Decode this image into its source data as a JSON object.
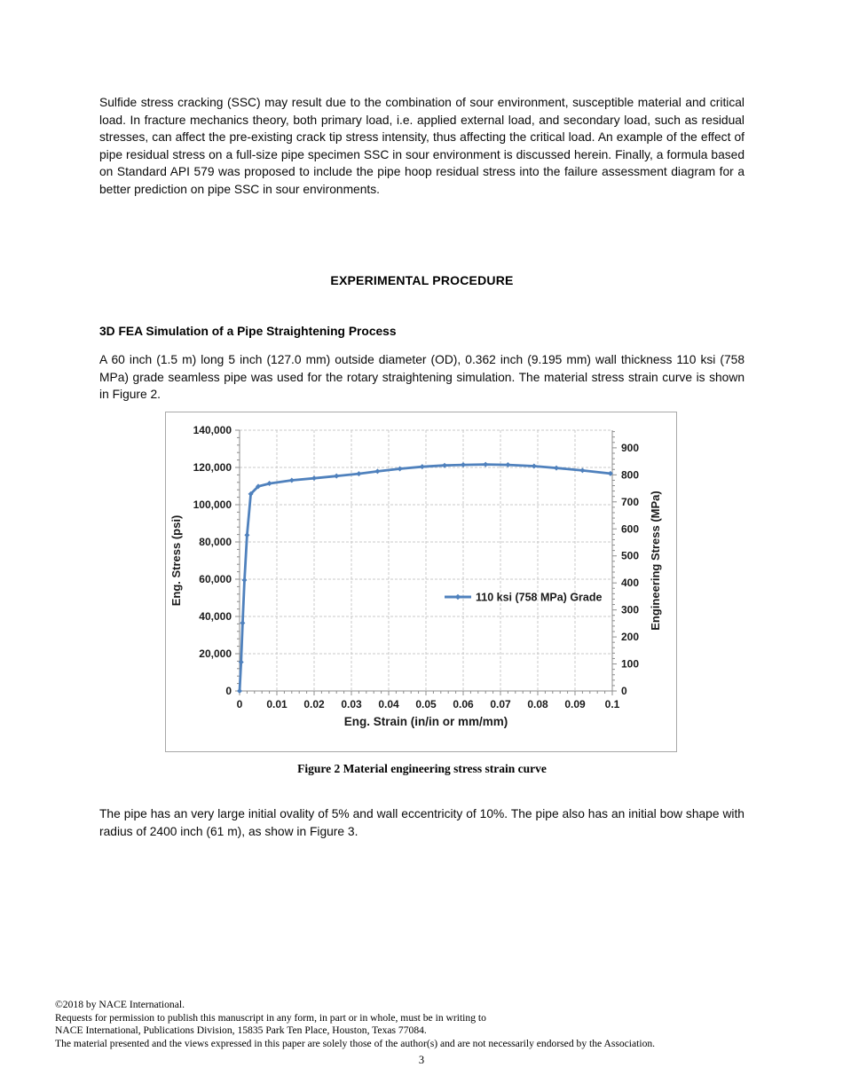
{
  "document": {
    "paragraph1": "Sulfide stress cracking (SSC) may result due to the combination of sour environment, susceptible material and critical load.  In fracture mechanics theory, both primary load, i.e. applied external load, and secondary load, such as residual stresses, can affect the pre-existing crack tip stress intensity, thus affecting the critical load.  An example of the effect of pipe residual stress on a full-size pipe specimen SSC in sour environment is discussed herein. Finally, a formula based on Standard API 579 was proposed to include the pipe hoop residual stress into the failure assessment diagram for a better prediction on pipe SSC in sour environments.",
    "section_heading": "EXPERIMENTAL PROCEDURE",
    "subsection_heading": "3D FEA Simulation of a Pipe Straightening Process",
    "paragraph2": "A 60 inch (1.5 m) long 5 inch (127.0 mm) outside diameter (OD), 0.362 inch (9.195 mm) wall thickness 110 ksi (758 MPa) grade seamless pipe was used for the rotary straightening simulation. The material stress strain curve is shown in Figure 2.",
    "figure_caption": "Figure 2 Material engineering stress strain curve",
    "paragraph3": "The pipe has an very large initial ovality of 5% and wall eccentricity of 10%.  The pipe also has an initial bow shape with radius of 2400 inch (61 m), as show in Figure 3.",
    "footer_lines": [
      "©2018 by NACE International.",
      "Requests for permission to publish this manuscript in any form, in part or in whole, must be in writing to",
      "NACE International, Publications Division, 15835 Park Ten Place, Houston, Texas 77084.",
      "The material presented and the views expressed in this paper are solely those of the author(s) and are not necessarily endorsed by the Association."
    ],
    "page_number": "3"
  },
  "chart_data": {
    "type": "line",
    "title": "",
    "xlabel": "Eng. Strain (in/in or mm/mm)",
    "ylabel_left": "Eng. Stress (psi)",
    "ylabel_right": "Engineering Stress (MPa)",
    "xlim": [
      0,
      0.1
    ],
    "ylim_left": [
      0,
      140000
    ],
    "ylim_right": [
      0,
      965.3
    ],
    "grid": "dashed-both-axes",
    "x_ticks": [
      0,
      0.01,
      0.02,
      0.03,
      0.04,
      0.05,
      0.06,
      0.07,
      0.08,
      0.09,
      0.1
    ],
    "x_tick_labels": [
      "0",
      "0.01",
      "0.02",
      "0.03",
      "0.04",
      "0.05",
      "0.06",
      "0.07",
      "0.08",
      "0.09",
      "0.1"
    ],
    "y_ticks_left": [
      0,
      20000,
      40000,
      60000,
      80000,
      100000,
      120000,
      140000
    ],
    "y_tick_labels_left": [
      "0",
      "20,000",
      "40,000",
      "60,000",
      "80,000",
      "100,000",
      "120,000",
      "140,000"
    ],
    "y_ticks_right": [
      0,
      100,
      200,
      300,
      400,
      500,
      600,
      700,
      800,
      900
    ],
    "y_tick_labels_right": [
      "0",
      "100",
      "200",
      "300",
      "400",
      "500",
      "600",
      "700",
      "800",
      "900"
    ],
    "legend": {
      "label": "110 ksi (758 MPa) Grade",
      "position": "inside-center-right",
      "border": "none"
    },
    "colors": {
      "line": "#4F81BD",
      "grid": "#c9c9c9",
      "axis": "#8c8c8c",
      "text": "#1a1a1a"
    },
    "marker": "diamond",
    "series": [
      {
        "name": "110 ksi (758 MPa) Grade",
        "x": [
          0,
          0.0004,
          0.0008,
          0.0013,
          0.002,
          0.003,
          0.005,
          0.008,
          0.014,
          0.02,
          0.026,
          0.032,
          0.037,
          0.043,
          0.049,
          0.055,
          0.06,
          0.066,
          0.072,
          0.079,
          0.085,
          0.092,
          0.0995
        ],
        "y_psi": [
          0,
          15500,
          36500,
          59500,
          83700,
          105800,
          109800,
          111400,
          113100,
          114200,
          115400,
          116600,
          117900,
          119300,
          120400,
          121100,
          121400,
          121600,
          121400,
          120700,
          119700,
          118400,
          116700
        ]
      }
    ]
  }
}
